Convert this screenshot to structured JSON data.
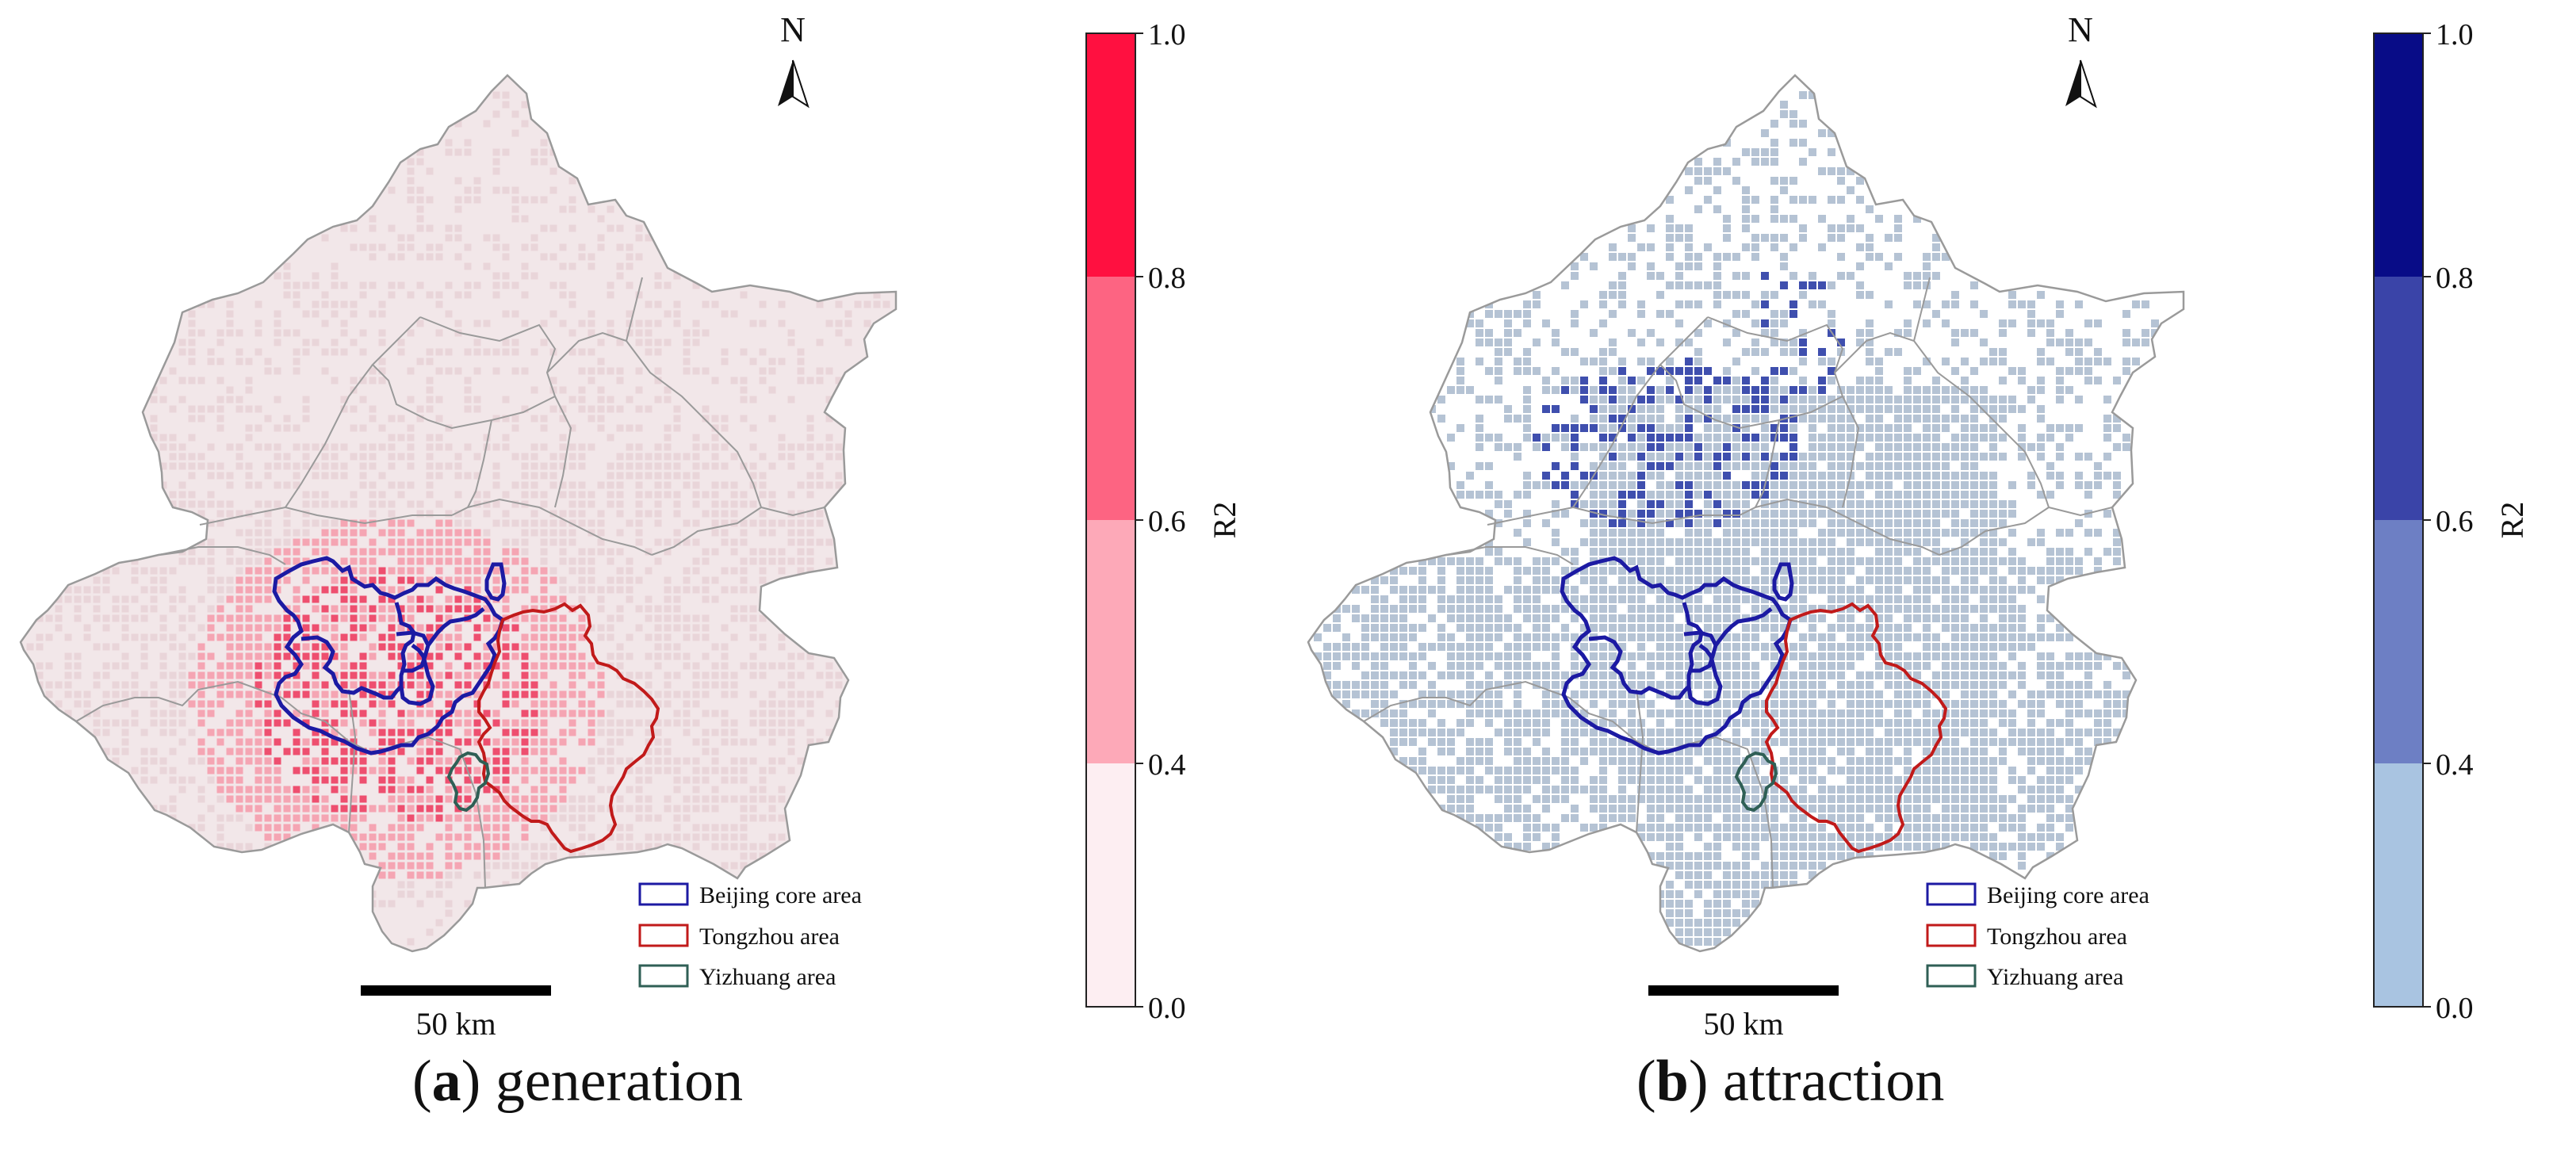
{
  "panels": [
    {
      "id": "a",
      "letter": "a",
      "caption": "generation",
      "north_label": "N",
      "scale_label": "50 km",
      "colorbar": {
        "label": "R2",
        "ticks": [
          "0.0",
          "0.4",
          "0.6",
          "0.8",
          "1.0"
        ],
        "colors": [
          "#fdeef2",
          "#fda9b8",
          "#fd6482",
          "#ff1040"
        ]
      },
      "legend": [
        "Beijing core area",
        "Tongzhou area",
        "Yizhuang area"
      ],
      "colors": {
        "base_cell": "#e9d5d9",
        "mid_cell": "#f5a5b3",
        "high_cell": "#ee4f6f",
        "boundary": "#9a9a9a",
        "core": "#1c1aa3",
        "tongzhou": "#c11a1a",
        "yizhuang": "#2f5f55"
      }
    },
    {
      "id": "b",
      "letter": "b",
      "caption": "attraction",
      "north_label": "N",
      "scale_label": "50 km",
      "colorbar": {
        "label": "R2",
        "ticks": [
          "0.0",
          "0.4",
          "0.6",
          "0.8",
          "1.0"
        ],
        "colors": [
          "#a9c4e1",
          "#6d7fc4",
          "#3a44a8",
          "#080c87"
        ]
      },
      "legend": [
        "Beijing core area",
        "Tongzhou area",
        "Yizhuang area"
      ],
      "colors": {
        "base_cell": "#b5c3d4",
        "mid_cell": "#9aaed0",
        "high_cell": "#3f4fae",
        "boundary": "#9a9a9a",
        "core": "#1c1aa3",
        "tongzhou": "#c11a1a",
        "yizhuang": "#2f5f55"
      }
    }
  ]
}
